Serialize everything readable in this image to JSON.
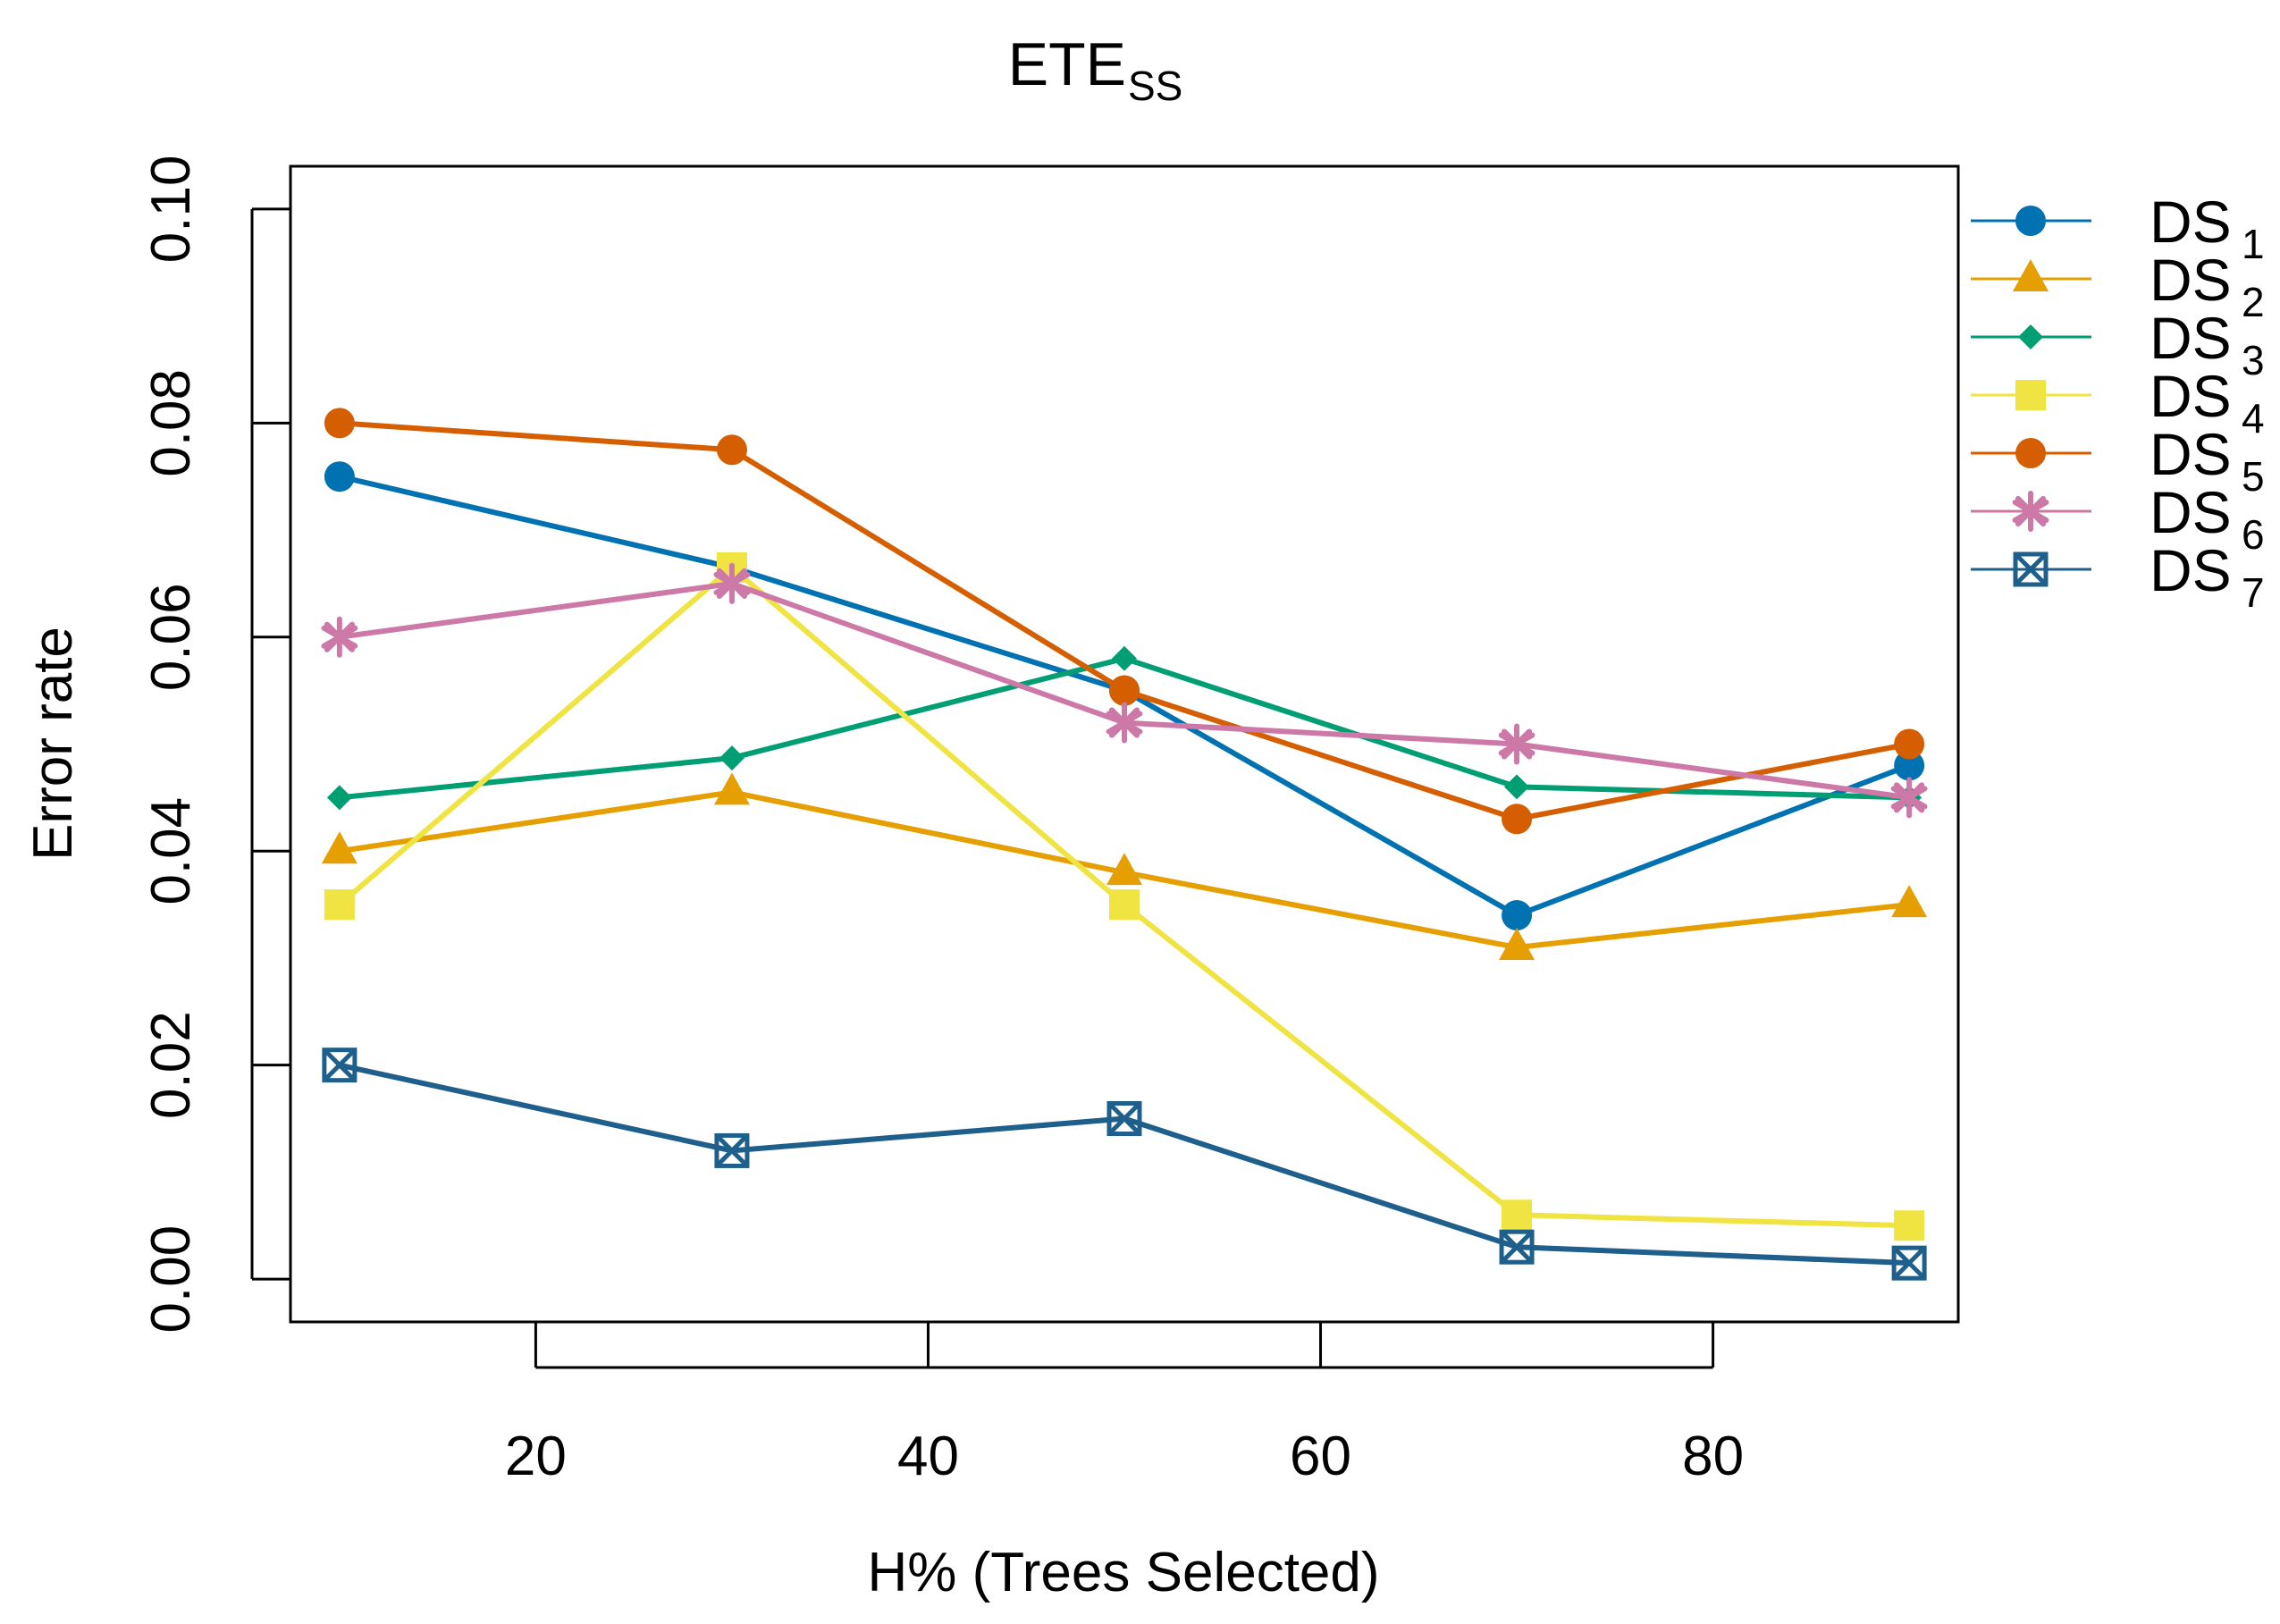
{
  "chart_data": {
    "type": "line",
    "title": "ETE",
    "title_subscript": "SS",
    "xlabel": "H% (Trees Selected)",
    "ylabel": "Error rate",
    "x": [
      10,
      30,
      50,
      70,
      90
    ],
    "xlim": [
      7.5,
      92.5
    ],
    "ylim": [
      -0.004,
      0.104
    ],
    "xticks": [
      {
        "value": 20,
        "label": "20"
      },
      {
        "value": 40,
        "label": "40"
      },
      {
        "value": 60,
        "label": "60"
      },
      {
        "value": 80,
        "label": "80"
      }
    ],
    "yticks": [
      {
        "value": 0.0,
        "label": "0.00"
      },
      {
        "value": 0.02,
        "label": "0.02"
      },
      {
        "value": 0.04,
        "label": "0.04"
      },
      {
        "value": 0.06,
        "label": "0.06"
      },
      {
        "value": 0.08,
        "label": "0.08"
      },
      {
        "value": 0.1,
        "label": "0.10"
      }
    ],
    "legend_position": "outside-right",
    "series": [
      {
        "name": "DS",
        "sub": "1",
        "color": "#0072B2",
        "marker": "circle",
        "values": [
          0.075,
          0.0665,
          0.055,
          0.034,
          0.048
        ]
      },
      {
        "name": "DS",
        "sub": "2",
        "color": "#E69F00",
        "marker": "triangle",
        "values": [
          0.04,
          0.0455,
          0.038,
          0.031,
          0.035
        ]
      },
      {
        "name": "DS",
        "sub": "3",
        "color": "#009E73",
        "marker": "diamond",
        "values": [
          0.045,
          0.0487,
          0.058,
          0.046,
          0.045
        ]
      },
      {
        "name": "DS",
        "sub": "4",
        "color": "#F0E442",
        "marker": "square",
        "values": [
          0.035,
          0.0665,
          0.035,
          0.006,
          0.005
        ]
      },
      {
        "name": "DS",
        "sub": "5",
        "color": "#D55E00",
        "marker": "circle",
        "values": [
          0.08,
          0.0775,
          0.055,
          0.043,
          0.05
        ]
      },
      {
        "name": "DS",
        "sub": "6",
        "color": "#CC79A7",
        "marker": "asterisk",
        "values": [
          0.06,
          0.065,
          0.052,
          0.05,
          0.045
        ]
      },
      {
        "name": "DS",
        "sub": "7",
        "color": "#1F5F8B",
        "marker": "boxx",
        "values": [
          0.02,
          0.012,
          0.015,
          0.003,
          0.0015
        ]
      }
    ]
  }
}
